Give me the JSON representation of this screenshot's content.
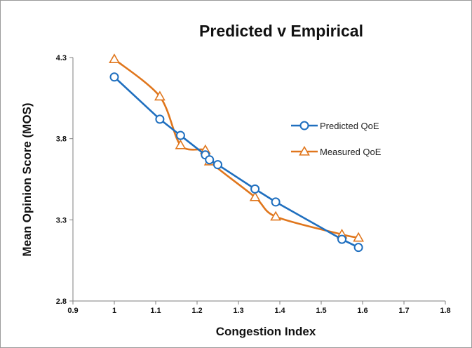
{
  "chart_data": {
    "type": "line",
    "title": "Predicted v Empirical",
    "xlabel": "Congestion Index",
    "ylabel": "Mean Opinion Score (MOS)",
    "xlim": [
      0.9,
      1.8
    ],
    "ylim": [
      2.8,
      4.3
    ],
    "x_ticks": [
      "0.9",
      "1",
      "1.1",
      "1.2",
      "1.3",
      "1.4",
      "1.5",
      "1.6",
      "1.7",
      "1.8"
    ],
    "y_ticks": [
      "2.8",
      "3.3",
      "3.8",
      "4.3"
    ],
    "grid": false,
    "legend_position": "right",
    "series": [
      {
        "name": "Predicted QoE",
        "color": "#1f6fbf",
        "marker": "circle",
        "smooth": false,
        "x": [
          1.0,
          1.11,
          1.16,
          1.22,
          1.23,
          1.25,
          1.34,
          1.39,
          1.55,
          1.59
        ],
        "y": [
          4.18,
          3.92,
          3.82,
          3.7,
          3.67,
          3.64,
          3.49,
          3.41,
          3.18,
          3.13
        ]
      },
      {
        "name": "Measured QoE",
        "color": "#e0761c",
        "marker": "triangle",
        "smooth": true,
        "x": [
          1.0,
          1.11,
          1.16,
          1.22,
          1.23,
          1.34,
          1.39,
          1.55,
          1.59
        ],
        "y": [
          4.29,
          4.06,
          3.76,
          3.73,
          3.66,
          3.44,
          3.32,
          3.21,
          3.19
        ]
      }
    ]
  }
}
